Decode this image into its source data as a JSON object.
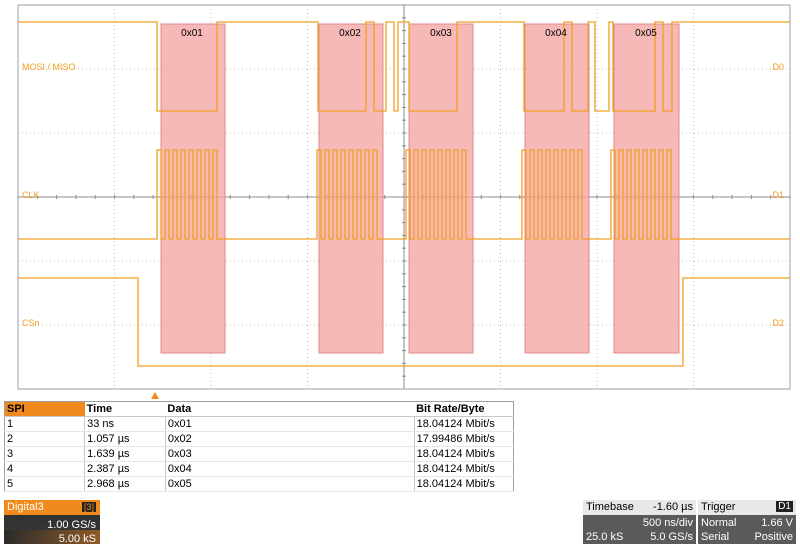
{
  "colors": {
    "trace": "#f0a020",
    "accent": "#f08a1c",
    "highlight": "#f4a0a0",
    "grid": "#b8b8b8"
  },
  "waveform": {
    "time_labels": [
      "0x01",
      "0x02",
      "0x03",
      "0x04",
      "0x05"
    ],
    "channels": [
      {
        "label": "MOSI / MISO",
        "tag": "D0"
      },
      {
        "label": "CLK",
        "tag": "D1"
      },
      {
        "label": "CSn",
        "tag": "D2"
      }
    ]
  },
  "table": {
    "headers": [
      "SPI",
      "Time",
      "Data",
      "Bit Rate/Byte"
    ],
    "rows": [
      [
        "1",
        "33 ns",
        "0x01",
        "18.04124 Mbit/s"
      ],
      [
        "2",
        "1.057 µs",
        "0x02",
        "17.99486 Mbit/s"
      ],
      [
        "3",
        "1.639 µs",
        "0x03",
        "18.04124 Mbit/s"
      ],
      [
        "4",
        "2.387 µs",
        "0x04",
        "18.04124 Mbit/s"
      ],
      [
        "5",
        "2.968 µs",
        "0x05",
        "18.04124 Mbit/s"
      ]
    ]
  },
  "digital": {
    "label": "Digital3",
    "badge": "[3]",
    "rate": "1.00 GS/s",
    "points": "5.00 kS"
  },
  "timebase": {
    "title": "Timebase",
    "position": "-1.60 µs",
    "scale": "500 ns/div",
    "points": "25.0 kS",
    "rate": "5.0 GS/s"
  },
  "trigger": {
    "title": "Trigger",
    "source": "D1",
    "mode": "Normal",
    "level": "1.66 V",
    "type": "Serial",
    "slope": "Positive"
  }
}
